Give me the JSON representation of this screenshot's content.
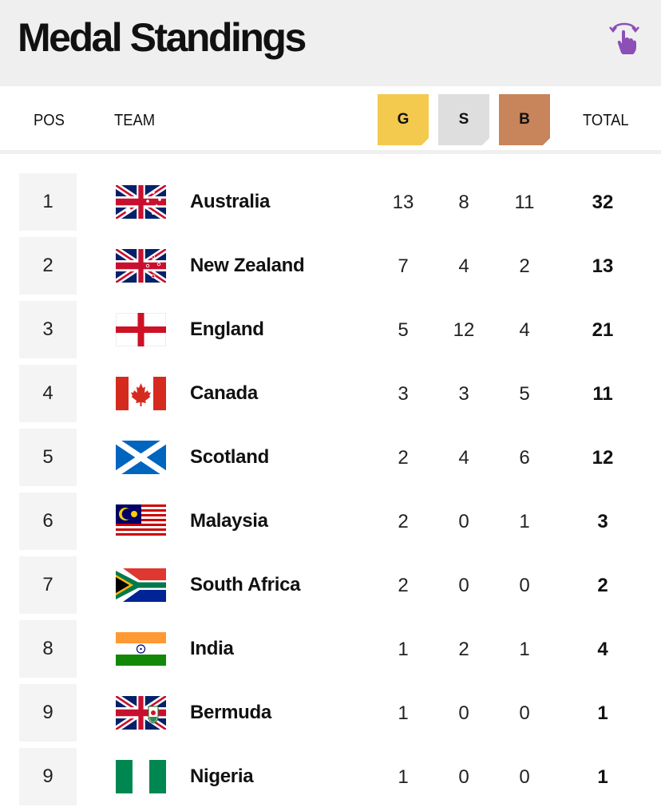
{
  "header": {
    "title": "Medal Standings",
    "swipe_icon": "swipe-hand-icon",
    "accent_color": "#8b4fb5"
  },
  "columns": {
    "pos": "POS",
    "team": "TEAM",
    "gold": "G",
    "silver": "S",
    "bronze": "B",
    "total": "TOTAL"
  },
  "medal_colors": {
    "gold": "#f3ca4d",
    "silver": "#dedede",
    "bronze": "#c8845a"
  },
  "rows": [
    {
      "pos": "1",
      "team": "Australia",
      "gold": "13",
      "silver": "8",
      "bronze": "11",
      "total": "32",
      "flag": "australia-flag"
    },
    {
      "pos": "2",
      "team": "New Zealand",
      "gold": "7",
      "silver": "4",
      "bronze": "2",
      "total": "13",
      "flag": "new-zealand-flag"
    },
    {
      "pos": "3",
      "team": "England",
      "gold": "5",
      "silver": "12",
      "bronze": "4",
      "total": "21",
      "flag": "england-flag"
    },
    {
      "pos": "4",
      "team": "Canada",
      "gold": "3",
      "silver": "3",
      "bronze": "5",
      "total": "11",
      "flag": "canada-flag"
    },
    {
      "pos": "5",
      "team": "Scotland",
      "gold": "2",
      "silver": "4",
      "bronze": "6",
      "total": "12",
      "flag": "scotland-flag"
    },
    {
      "pos": "6",
      "team": "Malaysia",
      "gold": "2",
      "silver": "0",
      "bronze": "1",
      "total": "3",
      "flag": "malaysia-flag"
    },
    {
      "pos": "7",
      "team": "South Africa",
      "gold": "2",
      "silver": "0",
      "bronze": "0",
      "total": "2",
      "flag": "south-africa-flag"
    },
    {
      "pos": "8",
      "team": "India",
      "gold": "1",
      "silver": "2",
      "bronze": "1",
      "total": "4",
      "flag": "india-flag"
    },
    {
      "pos": "9",
      "team": "Bermuda",
      "gold": "1",
      "silver": "0",
      "bronze": "0",
      "total": "1",
      "flag": "bermuda-flag"
    },
    {
      "pos": "9",
      "team": "Nigeria",
      "gold": "1",
      "silver": "0",
      "bronze": "0",
      "total": "1",
      "flag": "nigeria-flag"
    }
  ]
}
